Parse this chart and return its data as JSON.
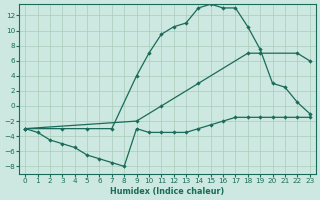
{
  "xlabel": "Humidex (Indice chaleur)",
  "bg_color": "#cce8e0",
  "grid_color": "#aaccbb",
  "line_color": "#1a6b5a",
  "xlim": [
    -0.5,
    23.5
  ],
  "ylim": [
    -9,
    13.5
  ],
  "yticks": [
    -8,
    -6,
    -4,
    -2,
    0,
    2,
    4,
    6,
    8,
    10,
    12
  ],
  "xticks": [
    0,
    1,
    2,
    3,
    4,
    5,
    6,
    7,
    8,
    9,
    10,
    11,
    12,
    13,
    14,
    15,
    16,
    17,
    18,
    19,
    20,
    21,
    22,
    23
  ],
  "line1_x": [
    0,
    3,
    5,
    7,
    9,
    10,
    11,
    12,
    13,
    14,
    15,
    16,
    17,
    18,
    19,
    20,
    21,
    22,
    23
  ],
  "line1_y": [
    -3,
    -3,
    -3,
    -3,
    4,
    7,
    9.5,
    10.5,
    11,
    13,
    13.5,
    13,
    13,
    10.5,
    7.5,
    3,
    2.5,
    0.5,
    -1
  ],
  "line2_x": [
    0,
    9,
    11,
    14,
    18,
    19,
    22,
    23
  ],
  "line2_y": [
    -3,
    -2,
    0,
    3,
    7,
    7,
    7,
    6
  ],
  "line3_x": [
    0,
    1,
    2,
    3,
    4,
    5,
    6,
    7,
    8,
    9,
    10,
    11,
    12,
    13,
    14,
    15,
    16,
    17,
    18,
    19,
    20,
    21,
    22,
    23
  ],
  "line3_y": [
    -3,
    -3.5,
    -4.5,
    -5,
    -5.5,
    -6.5,
    -7,
    -7.5,
    -8,
    -3,
    -3.5,
    -3.5,
    -3.5,
    -3.5,
    -3,
    -2.5,
    -2,
    -1.5,
    -1.5,
    -1.5,
    -1.5,
    -1.5,
    -1.5,
    -1.5
  ]
}
